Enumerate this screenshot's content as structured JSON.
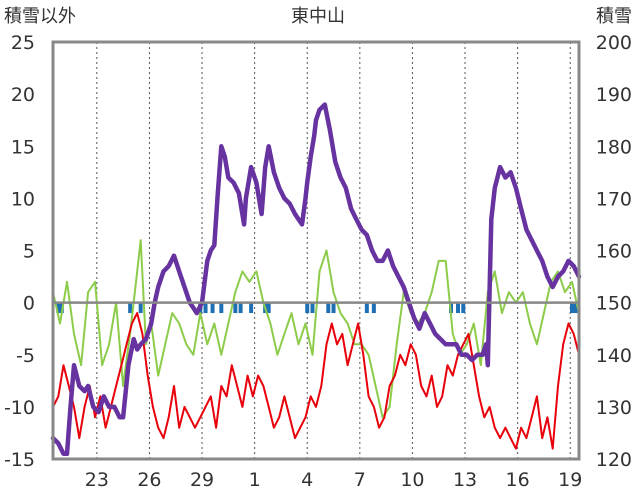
{
  "chart_data": {
    "type": "line",
    "title": "東中山",
    "ylabel_left": "積雪以外",
    "ylabel_right": "積雪",
    "xlabel": "",
    "y_left_lim": [
      -15,
      25
    ],
    "y_left_ticks": [
      25,
      20,
      15,
      10,
      5,
      0,
      -5,
      -10,
      -15
    ],
    "y_right_lim": [
      120,
      200
    ],
    "y_right_ticks": [
      200,
      190,
      180,
      170,
      160,
      150,
      140,
      130,
      120
    ],
    "x_lim": [
      0,
      30
    ],
    "x_ticks": [
      {
        "x": 2.5,
        "label": "23"
      },
      {
        "x": 5.5,
        "label": "26"
      },
      {
        "x": 8.5,
        "label": "29"
      },
      {
        "x": 11.5,
        "label": "1"
      },
      {
        "x": 14.5,
        "label": "4"
      },
      {
        "x": 17.5,
        "label": "7"
      },
      {
        "x": 20.5,
        "label": "10"
      },
      {
        "x": 23.5,
        "label": "13"
      },
      {
        "x": 26.5,
        "label": "16"
      },
      {
        "x": 29.5,
        "label": "19"
      }
    ],
    "grid": "vertical-dashed",
    "legend": "none",
    "series": [
      {
        "color": "#6633a0",
        "axis": "right",
        "x": [
          0.0,
          0.3,
          0.6,
          0.8,
          1.0,
          1.2,
          1.5,
          1.8,
          2.0,
          2.3,
          2.6,
          2.9,
          3.2,
          3.5,
          3.8,
          4.0,
          4.3,
          4.6,
          4.8,
          5.0,
          5.3,
          5.6,
          5.8,
          6.0,
          6.3,
          6.6,
          6.9,
          7.2,
          7.5,
          7.8,
          8.0,
          8.2,
          8.5,
          8.8,
          9.0,
          9.2,
          9.4,
          9.6,
          9.8,
          10.0,
          10.3,
          10.6,
          10.9,
          11.0,
          11.3,
          11.6,
          11.9,
          12.1,
          12.3,
          12.6,
          12.9,
          13.2,
          13.5,
          13.8,
          14.0,
          14.2,
          14.4,
          14.5,
          14.7,
          14.9,
          15.0,
          15.2,
          15.5,
          15.8,
          16.1,
          16.4,
          16.7,
          17.0,
          17.3,
          17.6,
          17.9,
          18.2,
          18.5,
          18.8,
          19.1,
          19.4,
          19.7,
          20.0,
          20.3,
          20.6,
          20.9,
          21.2,
          21.5,
          21.8,
          22.1,
          22.4,
          22.7,
          23.0,
          23.3,
          23.6,
          23.9,
          24.2,
          24.5,
          24.7,
          24.8,
          25.0,
          25.2,
          25.5,
          25.8,
          26.1,
          26.4,
          26.7,
          27.0,
          27.3,
          27.6,
          27.9,
          28.2,
          28.5,
          28.8,
          29.1,
          29.4,
          29.7,
          30.0
        ],
        "values": [
          124,
          123,
          121,
          121,
          130,
          138,
          134,
          133,
          134,
          130,
          129,
          132,
          130,
          130,
          128,
          128,
          138,
          143,
          141,
          142,
          143,
          146,
          150,
          153,
          156,
          157,
          159,
          156,
          153,
          150,
          149,
          148,
          150,
          158,
          160,
          161,
          171,
          180,
          178,
          174,
          173,
          171,
          165,
          170,
          176,
          173,
          167,
          176,
          180,
          175,
          172,
          170,
          169,
          167,
          166,
          165,
          170,
          173,
          178,
          182,
          185,
          187,
          188,
          183,
          177,
          174,
          172,
          168,
          166,
          164,
          163,
          160,
          158,
          158,
          160,
          157,
          155,
          153,
          150,
          147,
          145,
          148,
          146,
          144,
          143,
          142,
          142,
          142,
          140,
          140,
          139,
          140,
          140,
          142,
          138,
          166,
          172,
          176,
          174,
          175,
          172,
          168,
          164,
          162,
          160,
          158,
          155,
          153,
          155,
          156,
          158,
          157,
          155
        ]
      },
      {
        "color": "#8dcc4a",
        "axis": "left",
        "x": [
          0.0,
          0.4,
          0.8,
          1.2,
          1.6,
          2.0,
          2.4,
          2.8,
          3.2,
          3.6,
          4.0,
          4.4,
          4.8,
          5.0,
          5.3,
          5.6,
          6.0,
          6.4,
          6.8,
          7.2,
          7.6,
          8.0,
          8.4,
          8.8,
          9.2,
          9.6,
          10.0,
          10.4,
          10.8,
          11.2,
          11.6,
          12.0,
          12.4,
          12.8,
          13.2,
          13.6,
          14.0,
          14.4,
          14.8,
          15.2,
          15.6,
          16.0,
          16.4,
          16.8,
          17.2,
          17.6,
          18.0,
          18.4,
          18.8,
          19.2,
          19.6,
          20.0,
          20.4,
          20.8,
          21.2,
          21.6,
          22.0,
          22.4,
          22.8,
          23.2,
          23.6,
          24.0,
          24.4,
          24.8,
          25.2,
          25.6,
          26.0,
          26.4,
          26.8,
          27.2,
          27.6,
          28.0,
          28.4,
          28.8,
          29.2,
          29.6,
          30.0
        ],
        "values": [
          1,
          -2,
          2,
          -3,
          -6,
          1,
          2,
          -6,
          -4,
          0,
          -8,
          -3,
          3,
          6,
          -4,
          -2,
          -7,
          -4,
          -1,
          -2,
          -4,
          -5,
          -1,
          -4,
          -2,
          -5,
          -2,
          1,
          3,
          2,
          3,
          0,
          -2,
          -5,
          -3,
          -1,
          -4,
          -2,
          -5,
          3,
          5,
          1,
          -1,
          -2,
          -4,
          -4,
          -5,
          -8,
          -11,
          -10,
          -4,
          1,
          -1,
          -2,
          -1,
          1,
          4,
          4,
          -3,
          -5,
          -4,
          -2,
          -6,
          1,
          3,
          -1,
          1,
          0,
          1,
          -2,
          -4,
          -1,
          2,
          3,
          1,
          2,
          -1
        ]
      },
      {
        "color": "#e8000b",
        "axis": "left",
        "x": [
          0.0,
          0.3,
          0.6,
          0.9,
          1.2,
          1.5,
          1.8,
          2.1,
          2.4,
          2.7,
          3.0,
          3.3,
          3.6,
          3.9,
          4.2,
          4.5,
          4.8,
          5.1,
          5.4,
          5.7,
          6.0,
          6.3,
          6.6,
          6.9,
          7.2,
          7.5,
          7.8,
          8.1,
          8.4,
          8.7,
          9.0,
          9.3,
          9.6,
          9.9,
          10.2,
          10.5,
          10.8,
          11.1,
          11.4,
          11.7,
          12.0,
          12.3,
          12.6,
          12.9,
          13.2,
          13.5,
          13.8,
          14.1,
          14.4,
          14.7,
          15.0,
          15.3,
          15.6,
          15.9,
          16.2,
          16.5,
          16.8,
          17.1,
          17.4,
          17.7,
          18.0,
          18.3,
          18.6,
          18.9,
          19.2,
          19.5,
          19.8,
          20.1,
          20.4,
          20.7,
          21.0,
          21.3,
          21.6,
          21.9,
          22.2,
          22.5,
          22.8,
          23.1,
          23.4,
          23.7,
          24.0,
          24.3,
          24.6,
          24.9,
          25.2,
          25.5,
          25.8,
          26.1,
          26.4,
          26.7,
          27.0,
          27.3,
          27.6,
          27.9,
          28.2,
          28.5,
          28.8,
          29.1,
          29.4,
          29.7,
          30.0
        ],
        "values": [
          -10,
          -9,
          -6,
          -8,
          -10,
          -13,
          -10,
          -8,
          -11,
          -9,
          -12,
          -10,
          -8,
          -6,
          -4,
          -2,
          -1,
          -3,
          -7,
          -10,
          -12,
          -13,
          -11,
          -8,
          -12,
          -10,
          -11,
          -12,
          -11,
          -10,
          -9,
          -12,
          -8,
          -9,
          -6,
          -8,
          -10,
          -7,
          -9,
          -7,
          -8,
          -10,
          -12,
          -11,
          -9,
          -11,
          -13,
          -12,
          -11,
          -9,
          -10,
          -8,
          -4,
          -2,
          -4,
          -3,
          -6,
          -4,
          -2,
          -5,
          -9,
          -10,
          -12,
          -11,
          -8,
          -7,
          -5,
          -6,
          -4,
          -5,
          -8,
          -9,
          -7,
          -10,
          -9,
          -6,
          -7,
          -5,
          -4,
          -3,
          -6,
          -9,
          -11,
          -10,
          -12,
          -13,
          -12,
          -13,
          -14,
          -12,
          -13,
          -11,
          -9,
          -13,
          -11,
          -14,
          -8,
          -4,
          -2,
          -3,
          -5
        ]
      },
      {
        "color": "#1f6fb5",
        "axis": "left",
        "type": "bar",
        "x": [
          0.3,
          0.5,
          4.4,
          5.0,
          8.4,
          8.7,
          9.1,
          9.6,
          10.4,
          10.7,
          11.3,
          12.1,
          12.3,
          14.5,
          14.8,
          15.7,
          16.0,
          17.9,
          18.3,
          22.7,
          23.1,
          23.4,
          29.6,
          29.8
        ],
        "values": [
          -1,
          -1,
          -1,
          -1,
          -1,
          -1,
          -1,
          -1,
          -1,
          -1,
          -1,
          -1,
          -1,
          -1,
          -1,
          -1,
          -1,
          -1,
          -1,
          -1,
          -1,
          -1,
          -1,
          -1
        ]
      }
    ]
  }
}
